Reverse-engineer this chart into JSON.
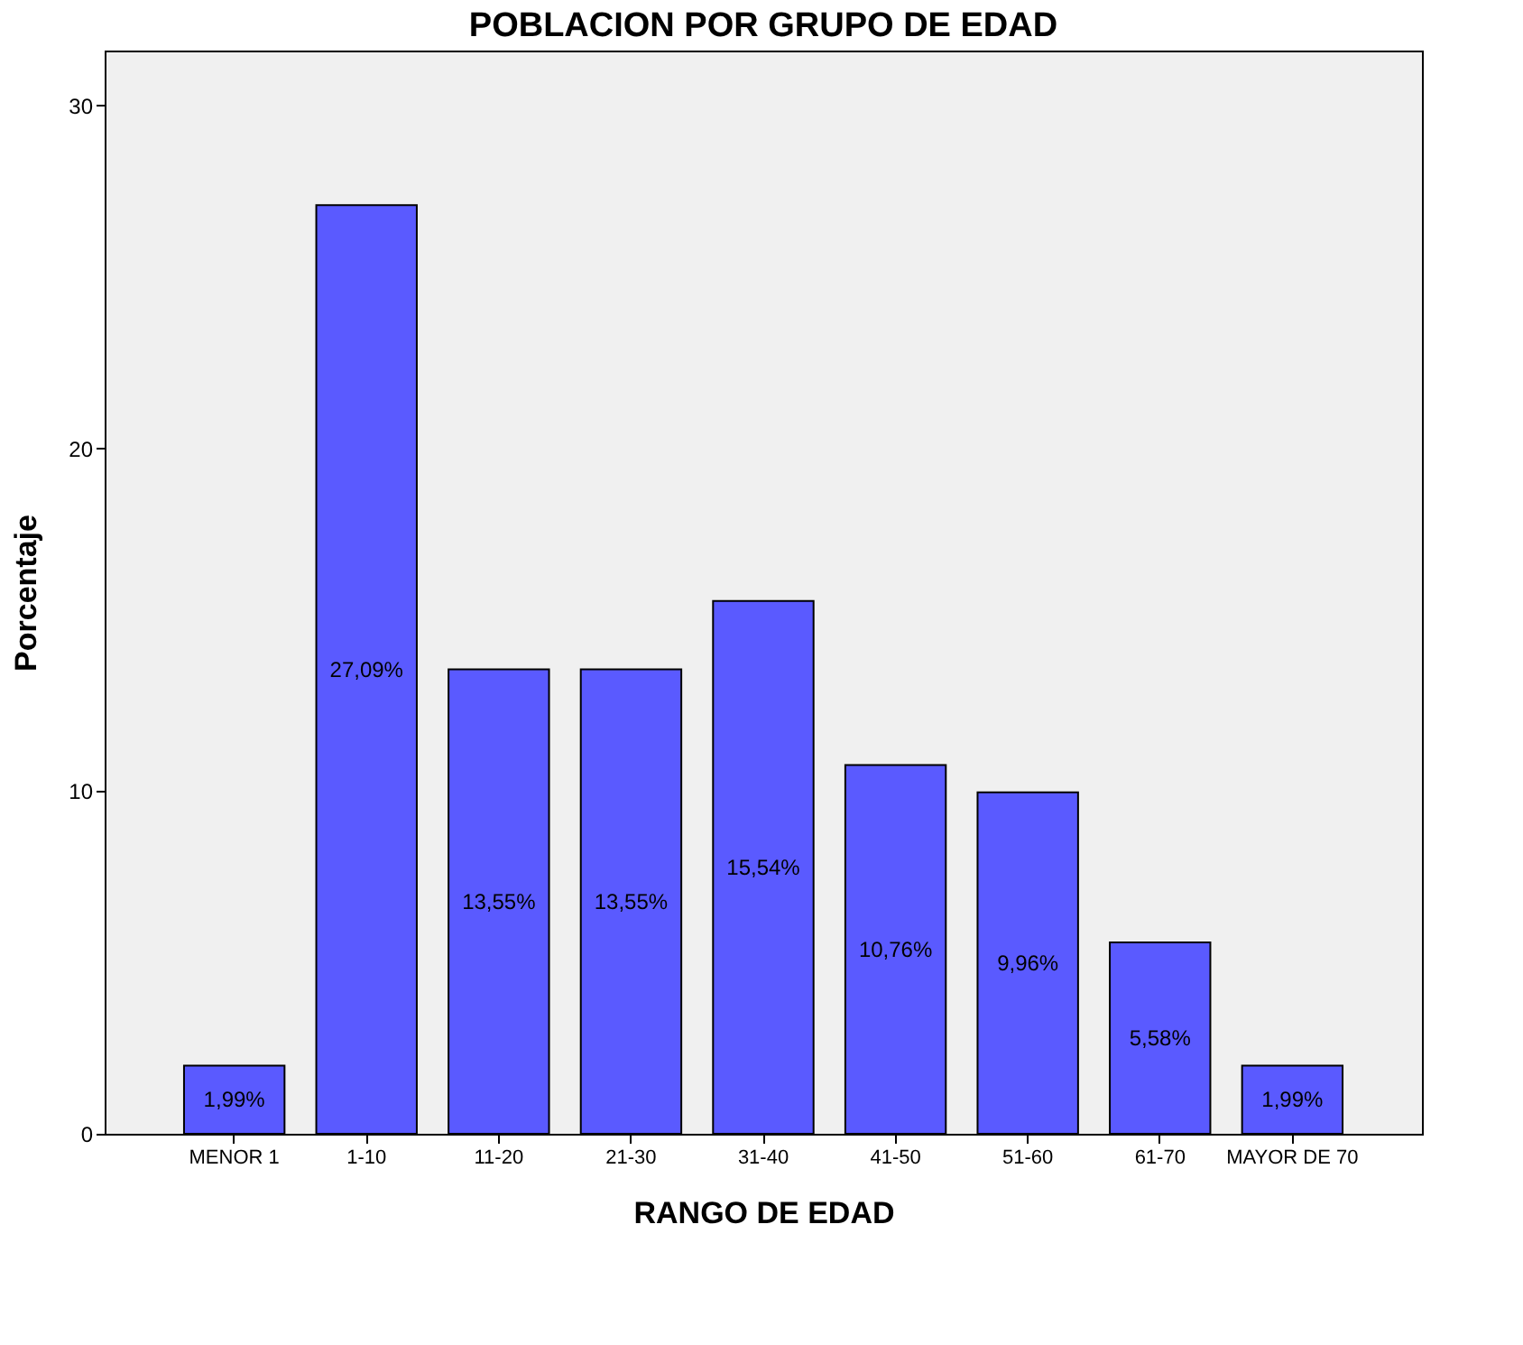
{
  "chart_data": {
    "type": "bar",
    "title": "POBLACION POR GRUPO DE EDAD",
    "xlabel": "RANGO DE EDAD",
    "ylabel": "Porcentaje",
    "categories": [
      "MENOR 1",
      "1-10",
      "11-20",
      "21-30",
      "31-40",
      "41-50",
      "51-60",
      "61-70",
      "MAYOR DE 70"
    ],
    "values": [
      1.99,
      27.09,
      13.55,
      13.55,
      15.54,
      10.76,
      9.96,
      5.58,
      1.99
    ],
    "value_labels": [
      "1,99%",
      "27,09%",
      "13,55%",
      "13,55%",
      "15,54%",
      "10,76%",
      "9,96%",
      "5,58%",
      "1,99%"
    ],
    "color": "#5a5aff",
    "ylim": [
      0,
      31.6
    ],
    "yticks": [
      0,
      10,
      20,
      30
    ],
    "grid": false
  }
}
